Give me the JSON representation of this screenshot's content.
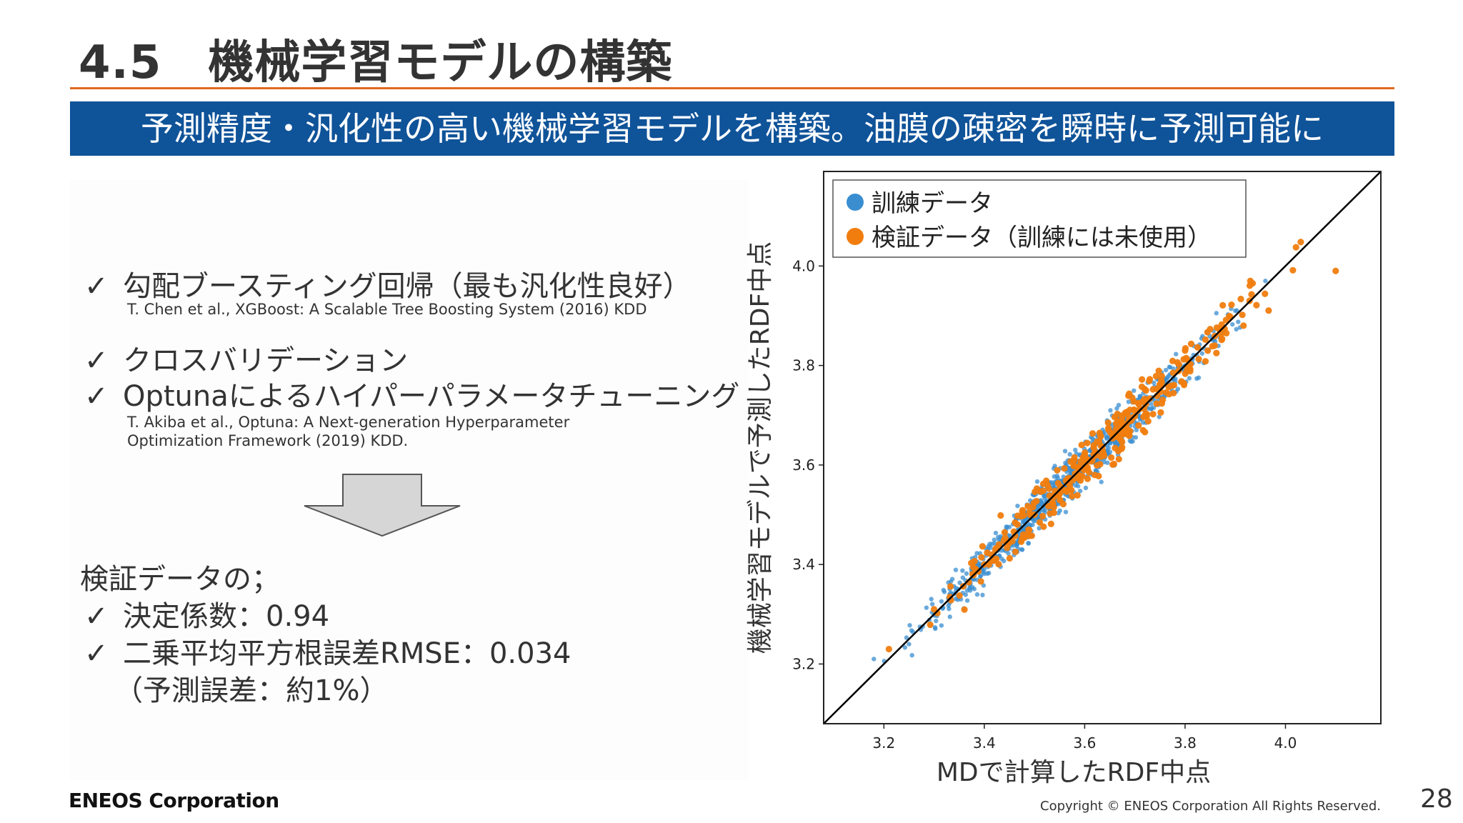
{
  "title": "4.5　機械学習モデルの構築",
  "banner": "予測精度・汎化性の高い機械学習モデルを構築。油膜の疎密を瞬時に予測可能に",
  "methods": [
    {
      "text": "勾配ブースティング回帰（最も汎化性良好）"
    },
    {
      "text": "クロスバリデーション"
    },
    {
      "text": "Optunaによるハイパーパラメータチューニング"
    }
  ],
  "refs": {
    "xgboost": "T. Chen et al., XGBoost: A Scalable Tree Boosting System (2016) KDD",
    "optuna_1": "T. Akiba et al., Optuna: A Next-generation Hyperparameter",
    "optuna_2": "Optimization Framework (2019) KDD."
  },
  "check_icon": "✓",
  "results": {
    "heading": "検証データの；",
    "r2": "決定係数：0.94",
    "rmse": "二乗平均平方根誤差RMSE：0.034",
    "note": "（予測誤差：約1%）"
  },
  "footer": {
    "logo": "ENEOS Corporation",
    "copyright": "Copyright © ENEOS Corporation  All Rights Reserved.",
    "page": "28"
  },
  "colors": {
    "title_rule": "#e06a1e",
    "banner_bg": "#0f5399",
    "train": "#3a8ed0",
    "validation": "#f07d0e",
    "ideal_line": "#000000"
  },
  "chart_data": {
    "type": "scatter",
    "title": "",
    "xlabel": "MDで計算したRDF中点",
    "ylabel": "機械学習モデルで予測したRDF中点",
    "xlim": [
      3.08,
      4.19
    ],
    "ylim": [
      3.08,
      4.19
    ],
    "xticks": [
      "3.2",
      "3.4",
      "3.6",
      "3.8",
      "4.0"
    ],
    "yticks": [
      "3.2",
      "3.4",
      "3.6",
      "3.8",
      "4.0"
    ],
    "legend_position": "top-left",
    "grid": false,
    "reference_line": "y = x",
    "series": [
      {
        "name": "訓練データ",
        "color": "#3a8ed0",
        "approx_points": 900,
        "x_range": [
          3.18,
          3.97
        ],
        "residual_sd": 0.03,
        "sample_points": [
          [
            3.18,
            3.21
          ],
          [
            3.25,
            3.24
          ],
          [
            3.3,
            3.3
          ],
          [
            3.4,
            3.39
          ],
          [
            3.5,
            3.51
          ],
          [
            3.6,
            3.6
          ],
          [
            3.7,
            3.7
          ],
          [
            3.8,
            3.8
          ],
          [
            3.9,
            3.91
          ],
          [
            3.96,
            3.97
          ]
        ]
      },
      {
        "name": "検証データ（訓練には未使用）",
        "color": "#f07d0e",
        "approx_points": 330,
        "x_range": [
          3.2,
          4.1
        ],
        "residual_sd": 0.035,
        "sample_points": [
          [
            3.21,
            3.23
          ],
          [
            3.3,
            3.31
          ],
          [
            3.4,
            3.4
          ],
          [
            3.5,
            3.5
          ],
          [
            3.6,
            3.62
          ],
          [
            3.7,
            3.71
          ],
          [
            3.8,
            3.83
          ],
          [
            3.93,
            3.97
          ],
          [
            4.1,
            3.99
          ]
        ]
      }
    ]
  }
}
